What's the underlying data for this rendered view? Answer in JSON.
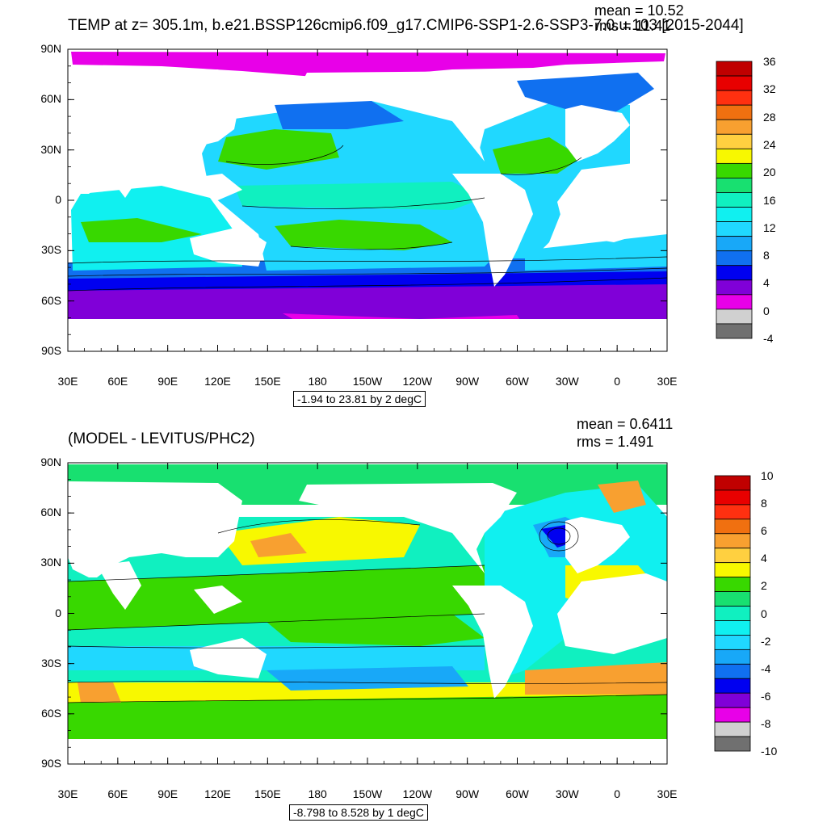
{
  "colors": {
    "land": "#ffffff",
    "frame": "#000000",
    "contour": "#000000"
  },
  "x_ticks": [
    "30E",
    "60E",
    "90E",
    "120E",
    "150E",
    "180",
    "150W",
    "120W",
    "90W",
    "60W",
    "30W",
    "0",
    "30E"
  ],
  "y_ticks": [
    "90N",
    "60N",
    "30N",
    "0",
    "30S",
    "60S",
    "90S"
  ],
  "panels": [
    {
      "id": "top",
      "title": "TEMP at z= 305.1m, b.e21.BSSP126cmip6.f09_g17.CMIP6-SSP1-2.6-SSP3-7.0.u.103 [2015-2044]",
      "mean_text": "mean = 10.52",
      "rms_text": "rms = 11.41",
      "range_text": "-1.94 to 23.81 by 2 degC",
      "colorbar": {
        "labels": [
          "36",
          "32",
          "28",
          "24",
          "20",
          "16",
          "12",
          "8",
          "4",
          "0",
          "-4"
        ],
        "colors": [
          "#c00000",
          "#e80000",
          "#ff3010",
          "#f07010",
          "#f8a030",
          "#ffd040",
          "#f8f800",
          "#38d800",
          "#18e070",
          "#10f0c0",
          "#10f0f0",
          "#20d8ff",
          "#18a8f8",
          "#1070f0",
          "#0000f0",
          "#8000d8",
          "#e800e8",
          "#d0d0d0",
          "#707070"
        ]
      }
    },
    {
      "id": "bottom",
      "title": "(MODEL - LEVITUS/PHC2)",
      "mean_text": "mean = 0.6411",
      "rms_text": "rms = 1.491",
      "range_text": "-8.798 to 8.528 by 1 degC",
      "colorbar": {
        "labels": [
          "10",
          "8",
          "6",
          "4",
          "2",
          "0",
          "-2",
          "-4",
          "-6",
          "-8",
          "-10"
        ],
        "colors": [
          "#c00000",
          "#e80000",
          "#ff3010",
          "#f07010",
          "#f8a030",
          "#ffd040",
          "#f8f800",
          "#38d800",
          "#18e070",
          "#10f0c0",
          "#10f0f0",
          "#20d8ff",
          "#18a8f8",
          "#1070f0",
          "#0000f0",
          "#8000d8",
          "#e800e8",
          "#d0d0d0",
          "#707070"
        ]
      }
    }
  ]
}
